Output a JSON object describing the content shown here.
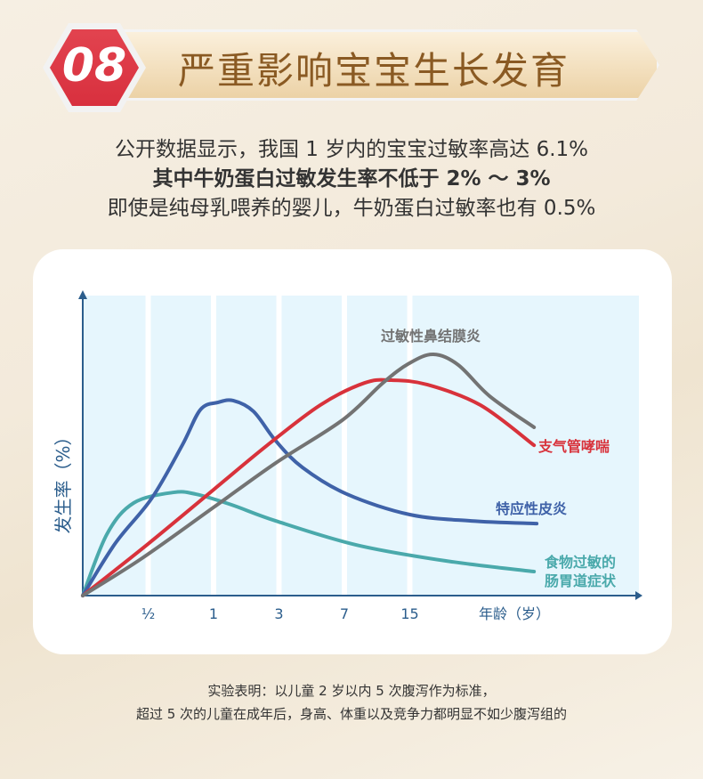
{
  "header": {
    "number": "08",
    "title": "严重影响宝宝生长发育"
  },
  "intro": [
    "公开数据显示，我国 1 岁内的宝宝过敏率高达 6.1%",
    "其中牛奶蛋白过敏发生率不低于 2% ～ 3%",
    "即使是纯母乳喂养的婴儿，牛奶蛋白过敏率也有 0.5%"
  ],
  "chart_data": {
    "type": "line",
    "ylabel": "发生率（%）",
    "xlabel": "年龄（岁）",
    "x_ticks": [
      "½",
      "1",
      "3",
      "7",
      "15"
    ],
    "x_tick_positions": [
      1,
      2,
      3,
      4,
      5
    ],
    "xlim": [
      0,
      8.5
    ],
    "ylim": [
      0,
      100
    ],
    "grid": "vertical bands",
    "series": [
      {
        "name": "食物过敏的肠胃道症状",
        "label_lines": [
          "食物过敏的",
          "肠胃道症状"
        ],
        "color": "#4aa9ab",
        "points": [
          [
            0,
            0
          ],
          [
            0.37,
            20.5
          ],
          [
            0.78,
            30.9
          ],
          [
            1.39,
            34.4
          ],
          [
            1.73,
            33.8
          ],
          [
            2.27,
            30.3
          ],
          [
            2.95,
            24.9
          ],
          [
            4.18,
            16.9
          ],
          [
            5.54,
            11.6
          ],
          [
            6.9,
            8
          ]
        ]
      },
      {
        "name": "特应性皮炎",
        "label_lines": [
          "特应性皮炎"
        ],
        "color": "#3f62a8",
        "points": [
          [
            0,
            0
          ],
          [
            0.5,
            17.5
          ],
          [
            1.05,
            32.3
          ],
          [
            1.52,
            50.1
          ],
          [
            1.8,
            62
          ],
          [
            2.07,
            64.4
          ],
          [
            2.3,
            65
          ],
          [
            2.61,
            61.4
          ],
          [
            2.95,
            51.6
          ],
          [
            3.36,
            42.7
          ],
          [
            4.04,
            33.8
          ],
          [
            5.0,
            27
          ],
          [
            5.94,
            24.9
          ],
          [
            6.94,
            24
          ]
        ]
      },
      {
        "name": "支气管哮喘",
        "label_lines": [
          "支气管哮喘"
        ],
        "color": "#d8323b",
        "points": [
          [
            0,
            0
          ],
          [
            0.98,
            16.9
          ],
          [
            2,
            35.3
          ],
          [
            2.82,
            50.1
          ],
          [
            3.63,
            63.5
          ],
          [
            4.31,
            70.9
          ],
          [
            4.72,
            71.8
          ],
          [
            5.27,
            70.3
          ],
          [
            6.08,
            63.5
          ],
          [
            6.9,
            50.1
          ]
        ]
      },
      {
        "name": "过敏性鼻结膜炎",
        "label_lines": [
          "过敏性鼻结膜炎"
        ],
        "color": "#737373",
        "points": [
          [
            0,
            0
          ],
          [
            0.91,
            12.5
          ],
          [
            2,
            29.4
          ],
          [
            2.95,
            44.2
          ],
          [
            3.97,
            58.5
          ],
          [
            4.59,
            70.9
          ],
          [
            4.99,
            77.4
          ],
          [
            5.36,
            80.4
          ],
          [
            5.74,
            76.9
          ],
          [
            6.22,
            66.5
          ],
          [
            6.9,
            56.1
          ]
        ]
      }
    ]
  },
  "footer": [
    "实验表明：以儿童 2 岁以内 5 次腹泻作为标准，",
    "超过 5 次的儿童在成年后，身高、体重以及竞争力都明显不如少腹泻组的"
  ]
}
